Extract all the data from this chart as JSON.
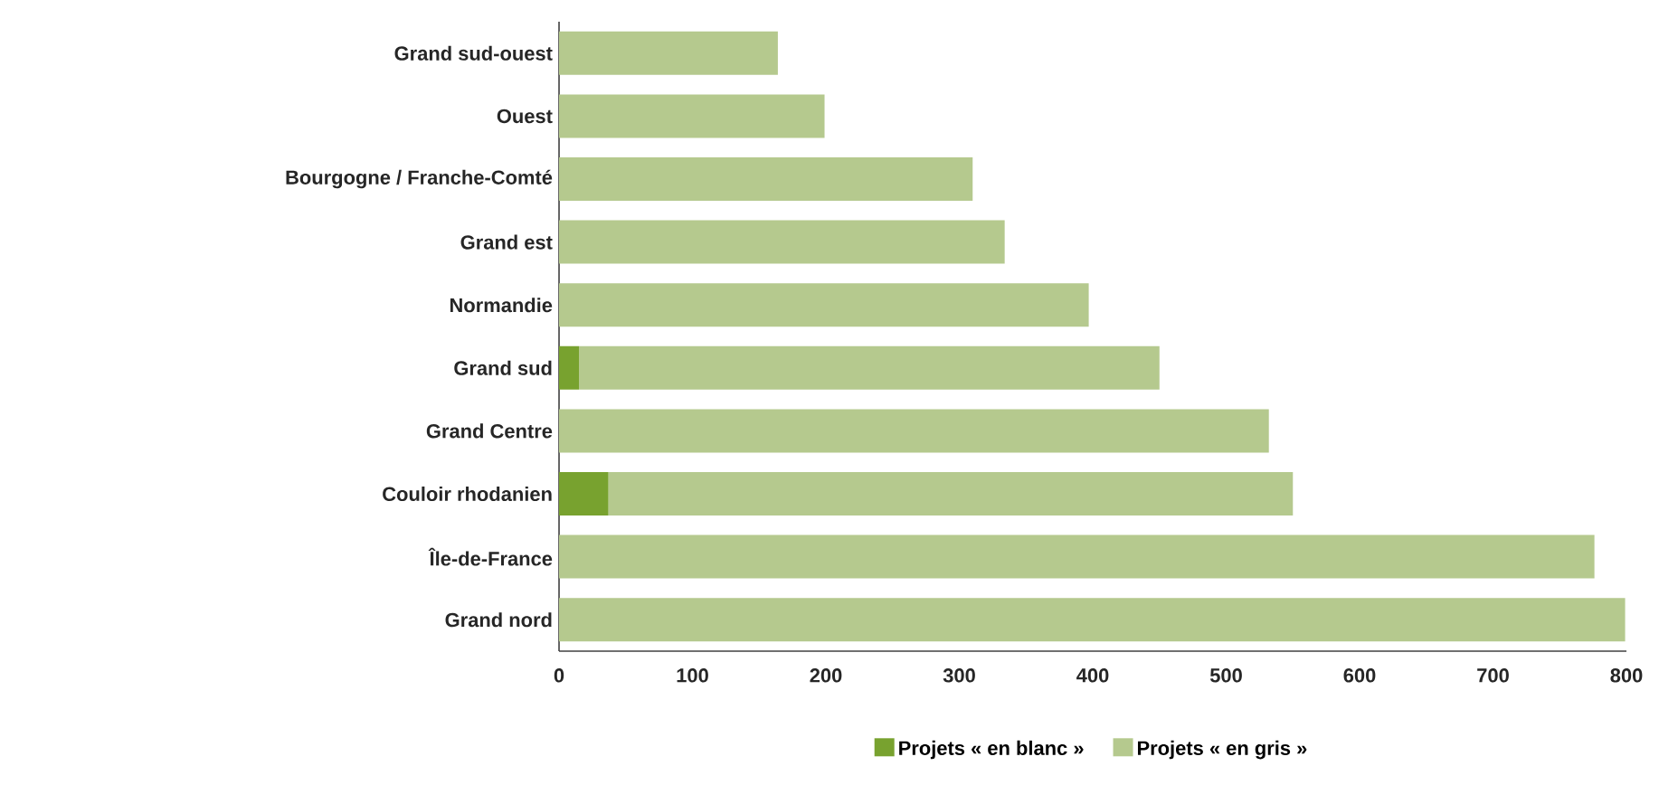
{
  "chart_data": {
    "type": "bar",
    "orientation": "horizontal",
    "stacked": true,
    "categories": [
      "Grand sud-ouest",
      "Ouest",
      "Bourgogne / Franche-Comté",
      "Grand est",
      "Normandie",
      "Grand sud",
      "Grand Centre",
      "Couloir rhodanien",
      "Île-de-France",
      "Grand nord"
    ],
    "series": [
      {
        "name": "Projets « en blanc »",
        "color": "#78a22f",
        "values": [
          0,
          0,
          0,
          0,
          0,
          15,
          0,
          37,
          0,
          0
        ]
      },
      {
        "name": "Projets « en gris »",
        "color": "#b5c98e",
        "values": [
          164,
          199,
          310,
          334,
          397,
          435,
          532,
          513,
          776,
          799
        ]
      }
    ],
    "xlim": [
      0,
      800
    ],
    "xticks": [
      0,
      100,
      200,
      300,
      400,
      500,
      600,
      700,
      800
    ],
    "legend": "bottom"
  }
}
